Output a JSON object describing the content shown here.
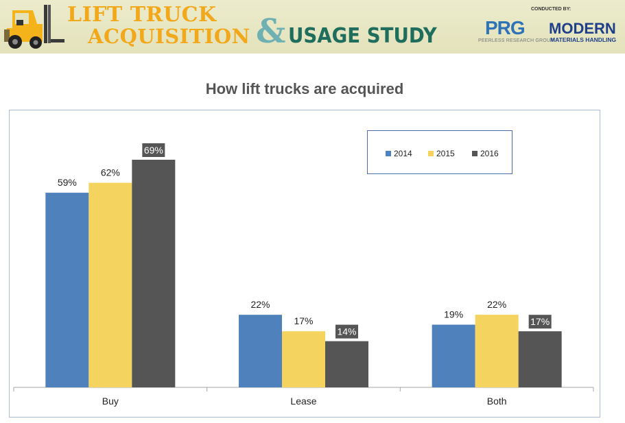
{
  "banner": {
    "title_line1": "LIFT TRUCK",
    "title_line2": "ACQUISITION",
    "ampersand": "&",
    "title_line3": "USAGE STUDY",
    "conducted_by": "CONDUCTED BY:",
    "prg_logo": "PRG",
    "prg_subtitle": "PEERLESS RESEARCH GROUP",
    "mmh_line1": "MODERN",
    "mmh_line2": "MATERIALS HANDLING",
    "icon": "forklift-icon"
  },
  "chart_data": {
    "type": "bar",
    "title": "How lift trucks are acquired",
    "categories": [
      "Buy",
      "Lease",
      "Both"
    ],
    "series": [
      {
        "name": "2014",
        "values": [
          59,
          22,
          19
        ],
        "color": "#4f81bd"
      },
      {
        "name": "2015",
        "values": [
          62,
          17,
          22
        ],
        "color": "#f4d35e"
      },
      {
        "name": "2016",
        "values": [
          69,
          14,
          17
        ],
        "color": "#555555"
      }
    ],
    "value_suffix": "%",
    "ylim": [
      0,
      75
    ],
    "grid": false,
    "legend_position": "top-right",
    "dark_label_series": "2016"
  }
}
